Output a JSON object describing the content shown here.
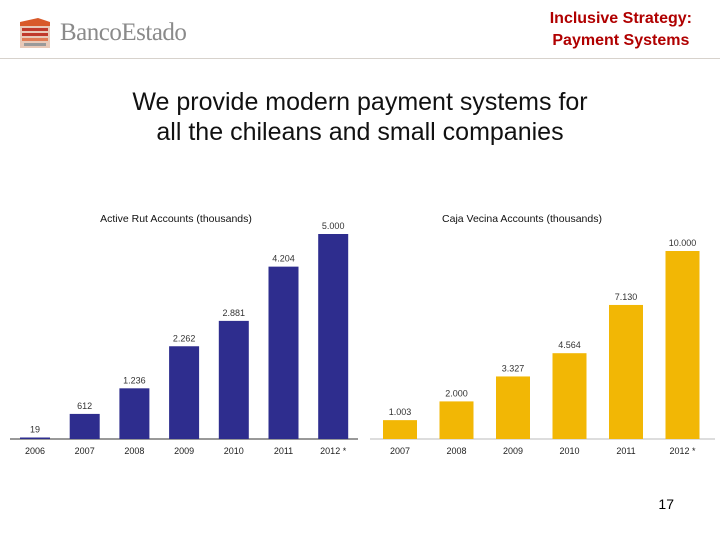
{
  "header": {
    "logo_text": "BancoEstado",
    "title_line1": "Inclusive Strategy:",
    "title_line2": "Payment Systems"
  },
  "main": {
    "title_line1": "We provide modern payment systems for",
    "title_line2": "all the chileans and small companies"
  },
  "page_number": "17",
  "colors": {
    "accent": "#b00000",
    "series_left": "#2e2d8e",
    "series_right": "#f2b705"
  },
  "chart_data": [
    {
      "type": "bar",
      "title": "Active Rut Accounts (thousands)",
      "categories": [
        "2006",
        "2007",
        "2008",
        "2009",
        "2010",
        "2011",
        "2012 *"
      ],
      "values": [
        19,
        612,
        1236,
        2262,
        2881,
        4204,
        5000
      ],
      "value_labels": [
        "19",
        "612",
        "1.236",
        "2.262",
        "2.881",
        "4.204",
        "5.000"
      ],
      "ylim": [
        0,
        5000
      ],
      "grid": false,
      "legend": "none"
    },
    {
      "type": "bar",
      "title": "Caja Vecina Accounts (thousands)",
      "categories": [
        "2007",
        "2008",
        "2009",
        "2010",
        "2011",
        "2012 *"
      ],
      "values": [
        1003,
        2000,
        3327,
        4564,
        7130,
        10000
      ],
      "value_labels": [
        "1.003",
        "2.000",
        "3.327",
        "4.564",
        "7.130",
        "10.000"
      ],
      "ylim": [
        0,
        10000
      ],
      "grid": false,
      "legend": "none"
    }
  ]
}
